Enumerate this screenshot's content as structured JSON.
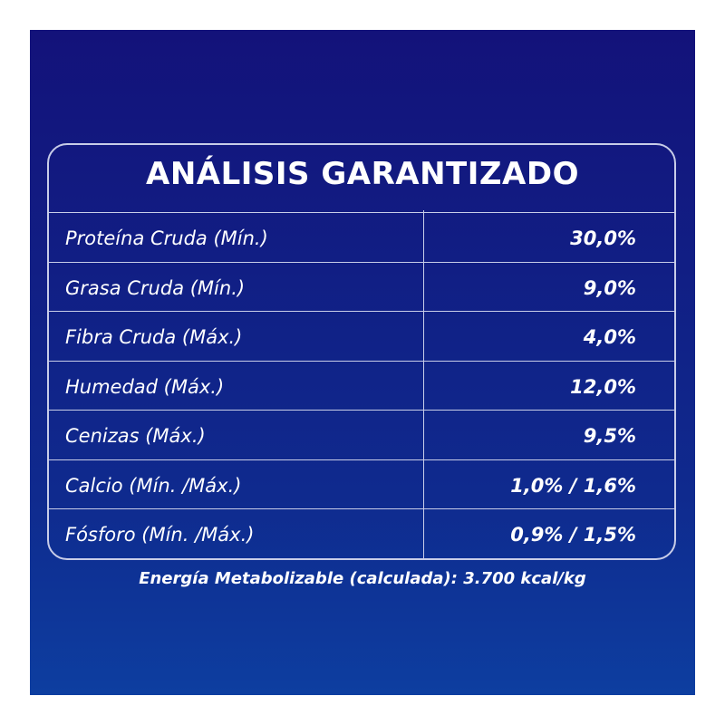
{
  "table": {
    "title": "ANÁLISIS GARANTIZADO",
    "rows": [
      [
        "Proteína Cruda (Mín.)",
        "30,0%"
      ],
      [
        "Grasa Cruda (Mín.)",
        "9,0%"
      ],
      [
        "Fibra Cruda (Máx.)",
        "4,0%"
      ],
      [
        "Humedad (Máx.)",
        "12,0%"
      ],
      [
        "Cenizas (Máx.)",
        "9,5%"
      ],
      [
        "Calcio (Mín. /Máx.)",
        "1,0% / 1,6%"
      ],
      [
        "Fósforo (Mín. /Máx.)",
        "0,9% / 1,5%"
      ]
    ],
    "footnote": "Energía Metabolizable (calculada): 3.700 kcal/kg"
  }
}
